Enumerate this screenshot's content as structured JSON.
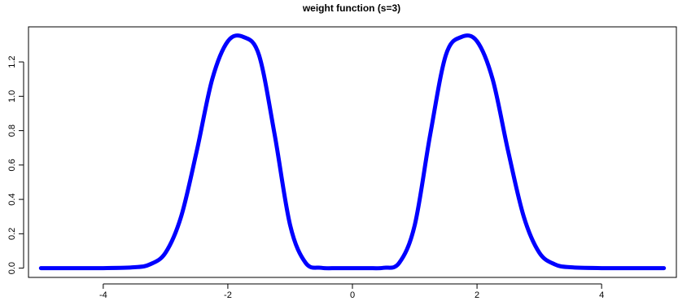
{
  "chart_data": {
    "type": "line",
    "title": "weight function (s=3)",
    "xlabel": "",
    "ylabel": "",
    "xlim": [
      -5.2,
      5.2
    ],
    "ylim": [
      -0.054,
      1.404
    ],
    "x_ticks": [
      -4,
      -2,
      0,
      2,
      4
    ],
    "x_tick_labels": [
      "-4",
      "-2",
      "0",
      "2",
      "4"
    ],
    "y_ticks": [
      0.0,
      0.2,
      0.4,
      0.6,
      0.8,
      1.0,
      1.2
    ],
    "y_tick_labels": [
      "0.0",
      "0.2",
      "0.4",
      "0.6",
      "0.8",
      "1.0",
      "1.2"
    ],
    "grid": false,
    "legend": "none",
    "series": [
      {
        "color": "#0000ff",
        "x": [
          -5.0,
          -4.5,
          -4.0,
          -3.5,
          -3.25,
          -3.0,
          -2.75,
          -2.5,
          -2.25,
          -2.0,
          -1.75,
          -1.5,
          -1.25,
          -1.0,
          -0.75,
          -0.5,
          -0.25,
          0.0,
          0.25,
          0.5,
          0.75,
          1.0,
          1.25,
          1.5,
          1.75,
          2.0,
          2.25,
          2.5,
          2.75,
          3.0,
          3.25,
          3.5,
          4.0,
          4.5,
          5.0
        ],
        "y": [
          0.0,
          0.0,
          0.0,
          0.005,
          0.022,
          0.09,
          0.3,
          0.68,
          1.1,
          1.32,
          1.345,
          1.24,
          0.78,
          0.25,
          0.03,
          0.002,
          0.0,
          0.0,
          0.0,
          0.002,
          0.03,
          0.25,
          0.78,
          1.24,
          1.345,
          1.32,
          1.1,
          0.68,
          0.3,
          0.09,
          0.022,
          0.005,
          0.0,
          0.0,
          0.0
        ]
      }
    ]
  }
}
